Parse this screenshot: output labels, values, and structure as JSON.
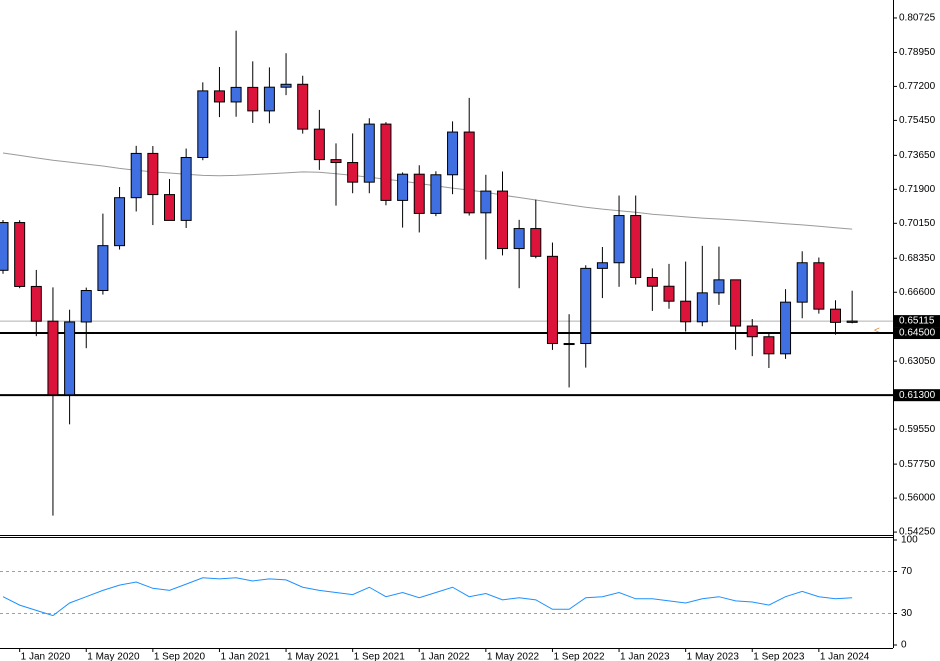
{
  "chart_data": [
    {
      "type": "candlestick",
      "categories": [
        null,
        "1 Jan 2020",
        null,
        null,
        null,
        "1 May 2020",
        null,
        null,
        null,
        "1 Sep 2020",
        null,
        null,
        null,
        "1 Jan 2021",
        null,
        null,
        null,
        "1 May 2021",
        null,
        null,
        null,
        "1 Sep 2021",
        null,
        null,
        null,
        "1 Jan 2022",
        null,
        null,
        null,
        "1 May 2022",
        null,
        null,
        null,
        "1 Sep 2022",
        null,
        null,
        null,
        "1 Jan 2023",
        null,
        null,
        null,
        "1 May 2023",
        null,
        null,
        null,
        "1 Sep 2023",
        null,
        null,
        null,
        "1 Jan 2024",
        null,
        null
      ],
      "open": [
        0.6773,
        0.7019,
        0.669,
        0.6511,
        0.6132,
        0.6507,
        0.6669,
        0.69,
        0.7147,
        0.7375,
        0.7163,
        0.703,
        0.7354,
        0.7697,
        0.764,
        0.7715,
        0.7594,
        0.7716,
        0.7731,
        0.75,
        0.7343,
        0.7328,
        0.7227,
        0.7526,
        0.7133,
        0.7268,
        0.7066,
        0.7265,
        0.7485,
        0.7069,
        0.7181,
        0.6885,
        0.6988,
        0.6845,
        0.6396,
        0.6396,
        0.6783,
        0.6812,
        0.7055,
        0.6736,
        0.6691,
        0.6614,
        0.6508,
        0.6657,
        0.6724,
        0.6486,
        0.6431,
        0.6343,
        0.6609,
        0.6812,
        0.6573,
        0.6505
      ],
      "high": [
        0.7032,
        0.7031,
        0.6775,
        0.6685,
        0.657,
        0.6684,
        0.7065,
        0.7202,
        0.7414,
        0.7413,
        0.7243,
        0.74,
        0.7741,
        0.782,
        0.8007,
        0.7849,
        0.7818,
        0.7891,
        0.7775,
        0.7599,
        0.7427,
        0.7478,
        0.7556,
        0.7536,
        0.7277,
        0.7314,
        0.7283,
        0.754,
        0.7661,
        0.7265,
        0.7282,
        0.7033,
        0.7137,
        0.6916,
        0.6547,
        0.6799,
        0.6893,
        0.7158,
        0.7158,
        0.6783,
        0.6806,
        0.6818,
        0.6899,
        0.6895,
        0.6723,
        0.6522,
        0.6445,
        0.6676,
        0.6871,
        0.6839,
        0.6619,
        0.6668
      ],
      "low": [
        0.6755,
        0.6681,
        0.6434,
        0.551,
        0.598,
        0.6372,
        0.6648,
        0.688,
        0.7076,
        0.7006,
        0.704,
        0.6991,
        0.734,
        0.7562,
        0.7564,
        0.7532,
        0.753,
        0.7675,
        0.7477,
        0.729,
        0.7106,
        0.717,
        0.717,
        0.7108,
        0.6993,
        0.6968,
        0.7052,
        0.7165,
        0.7055,
        0.6829,
        0.685,
        0.6681,
        0.6835,
        0.6363,
        0.617,
        0.6272,
        0.663,
        0.6688,
        0.67,
        0.6564,
        0.6575,
        0.6458,
        0.6485,
        0.6595,
        0.6364,
        0.6331,
        0.627,
        0.6317,
        0.6526,
        0.655,
        0.6442,
        0.65
      ],
      "close": [
        0.7019,
        0.669,
        0.6511,
        0.6132,
        0.6507,
        0.6669,
        0.69,
        0.7147,
        0.7375,
        0.7163,
        0.703,
        0.7354,
        0.7697,
        0.764,
        0.7715,
        0.7594,
        0.7716,
        0.7731,
        0.75,
        0.7343,
        0.7328,
        0.7227,
        0.7526,
        0.7133,
        0.7268,
        0.7066,
        0.7265,
        0.7485,
        0.7069,
        0.7181,
        0.6885,
        0.6988,
        0.6845,
        0.6396,
        0.6396,
        0.6783,
        0.6812,
        0.7055,
        0.6736,
        0.6691,
        0.6614,
        0.6508,
        0.6657,
        0.6724,
        0.6486,
        0.6431,
        0.6343,
        0.6609,
        0.6812,
        0.6573,
        0.6505,
        0.65115
      ],
      "up_color": "#3f6fe0",
      "down_color": "#dc143c",
      "ma": {
        "values": [
          0.7377,
          0.7365,
          0.7352,
          0.734,
          0.733,
          0.732,
          0.731,
          0.7298,
          0.7288,
          0.728,
          0.7274,
          0.7268,
          0.7262,
          0.726,
          0.7262,
          0.7266,
          0.727,
          0.7275,
          0.728,
          0.7278,
          0.727,
          0.7262,
          0.7252,
          0.7242,
          0.7232,
          0.722,
          0.7208,
          0.7196,
          0.7186,
          0.7175,
          0.716,
          0.7148,
          0.7135,
          0.7122,
          0.711,
          0.7098,
          0.7088,
          0.708,
          0.7072,
          0.7062,
          0.7055,
          0.7048,
          0.7042,
          0.7037,
          0.7032,
          0.7026,
          0.702,
          0.7013,
          0.7007,
          0.7,
          0.6992,
          0.6985
        ],
        "color": "#9a9a9a"
      },
      "ylim": [
        0.541,
        0.8165
      ],
      "yticks": [
        {
          "value": 0.80725,
          "label": "0.80725"
        },
        {
          "value": 0.7895,
          "label": "0.78950"
        },
        {
          "value": 0.772,
          "label": "0.77200"
        },
        {
          "value": 0.7545,
          "label": "0.75450"
        },
        {
          "value": 0.7365,
          "label": "0.73650"
        },
        {
          "value": 0.719,
          "label": "0.71900"
        },
        {
          "value": 0.7015,
          "label": "0.70150"
        },
        {
          "value": 0.6835,
          "label": "0.68350"
        },
        {
          "value": 0.666,
          "label": "0.66600"
        },
        {
          "value": 0.6305,
          "label": "0.63050"
        },
        {
          "value": 0.5955,
          "label": "0.59550"
        },
        {
          "value": 0.5775,
          "label": "0.57750"
        },
        {
          "value": 0.56,
          "label": "0.56000"
        },
        {
          "value": 0.5425,
          "label": "0.54250"
        }
      ],
      "hlines": [
        {
          "value": 0.645,
          "label": "0.64500"
        },
        {
          "value": 0.613,
          "label": "0.61300"
        }
      ],
      "current_price": {
        "value": 0.65115,
        "label": "0.65115"
      }
    },
    {
      "type": "line",
      "values": [
        46,
        38,
        33,
        28,
        40,
        46,
        52,
        57,
        60,
        54,
        52,
        58,
        64,
        63,
        64,
        61,
        63,
        62,
        55,
        52,
        50,
        48,
        55,
        46,
        50,
        45,
        50,
        55,
        46,
        49,
        43,
        45,
        43,
        34,
        34,
        45,
        46,
        50,
        44,
        44,
        42,
        40,
        44,
        46,
        42,
        41,
        38,
        46,
        51,
        46,
        44,
        45
      ],
      "color": "#1e90ff",
      "ylim": [
        0,
        100
      ],
      "yticks": [
        100,
        70,
        30,
        0
      ],
      "levels": [
        70,
        30
      ]
    }
  ]
}
